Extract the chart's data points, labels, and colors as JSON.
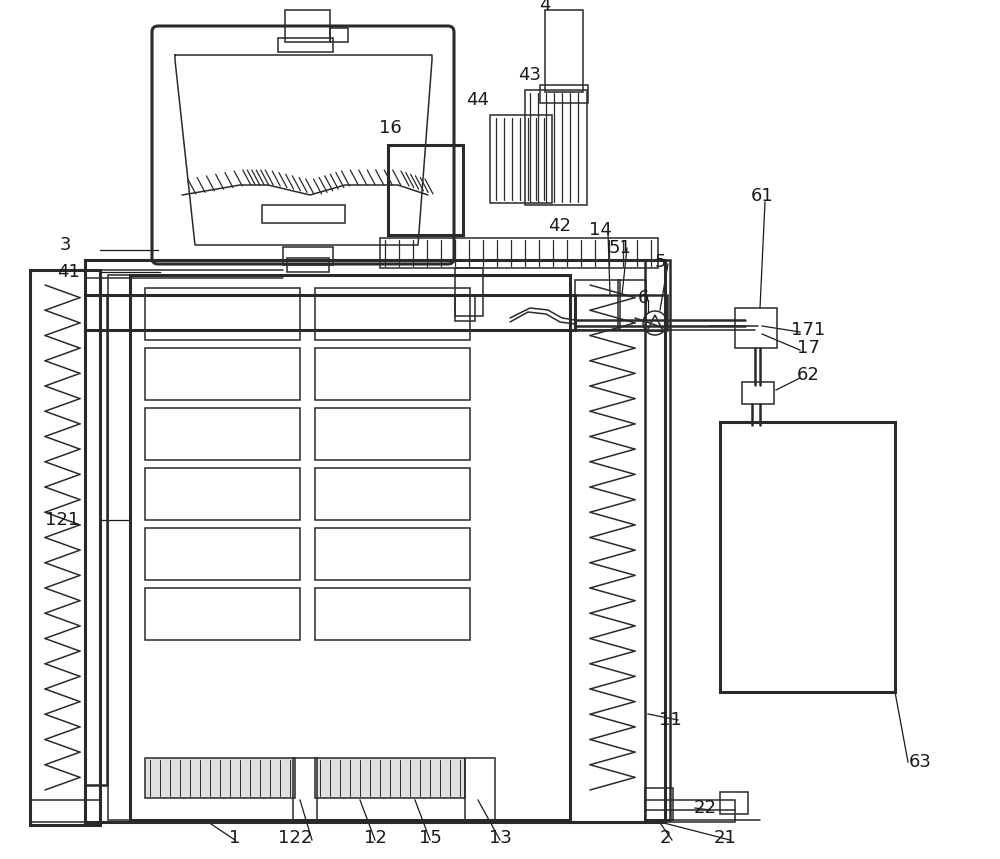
{
  "bg_color": "#ffffff",
  "lc": "#2a2a2a",
  "lw": 1.8,
  "lw_thin": 1.1,
  "lw_thick": 2.2
}
